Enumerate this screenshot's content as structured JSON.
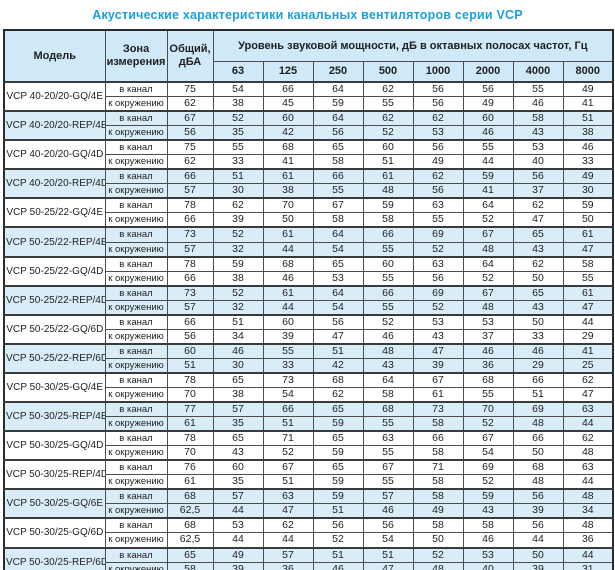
{
  "title": "Акустические характеристики канальных вентиляторов  серии VCP",
  "table": {
    "headers": {
      "model": "Модель",
      "zone": "Зона\nизмерения",
      "total": "Общий,\nдБА",
      "octave": "Уровень звуковой мощности, дБ в октавных полосах частот, Гц",
      "frequencies": [
        "63",
        "125",
        "250",
        "500",
        "1000",
        "2000",
        "4000",
        "8000"
      ]
    },
    "zone_labels": {
      "duct": "в канал",
      "ambient": "к окружению"
    },
    "rows": [
      {
        "model": "VCP 40-20/20-GQ/4E",
        "shaded": false,
        "duct": {
          "total": "75",
          "bands": [
            54,
            66,
            64,
            62,
            56,
            56,
            55,
            49
          ]
        },
        "ambient": {
          "total": "62",
          "bands": [
            38,
            45,
            59,
            55,
            56,
            49,
            46,
            41
          ]
        }
      },
      {
        "model": "VCP 40-20/20-REP/4E",
        "shaded": true,
        "duct": {
          "total": "67",
          "bands": [
            52,
            60,
            64,
            62,
            62,
            60,
            58,
            51
          ]
        },
        "ambient": {
          "total": "56",
          "bands": [
            35,
            42,
            56,
            52,
            53,
            46,
            43,
            38
          ]
        }
      },
      {
        "model": "VCP 40-20/20-GQ/4D",
        "shaded": false,
        "duct": {
          "total": "75",
          "bands": [
            55,
            68,
            65,
            60,
            56,
            55,
            53,
            46
          ]
        },
        "ambient": {
          "total": "62",
          "bands": [
            33,
            41,
            58,
            51,
            49,
            44,
            40,
            33
          ]
        }
      },
      {
        "model": "VCP 40-20/20-REP/4D",
        "shaded": true,
        "duct": {
          "total": "66",
          "bands": [
            51,
            61,
            66,
            61,
            62,
            59,
            56,
            49
          ]
        },
        "ambient": {
          "total": "57",
          "bands": [
            30,
            38,
            55,
            48,
            56,
            41,
            37,
            30
          ]
        }
      },
      {
        "model": "VCP 50-25/22-GQ/4E",
        "shaded": false,
        "duct": {
          "total": "78",
          "bands": [
            62,
            70,
            67,
            59,
            63,
            64,
            62,
            59
          ]
        },
        "ambient": {
          "total": "66",
          "bands": [
            39,
            50,
            58,
            58,
            55,
            52,
            47,
            50
          ]
        }
      },
      {
        "model": "VCP 50-25/22-REP/4E",
        "shaded": true,
        "duct": {
          "total": "73",
          "bands": [
            52,
            61,
            64,
            66,
            69,
            67,
            65,
            61
          ]
        },
        "ambient": {
          "total": "57",
          "bands": [
            32,
            44,
            54,
            55,
            52,
            48,
            43,
            47
          ]
        }
      },
      {
        "model": "VCP 50-25/22-GQ/4D",
        "shaded": false,
        "duct": {
          "total": "78",
          "bands": [
            59,
            68,
            65,
            60,
            63,
            64,
            62,
            58
          ]
        },
        "ambient": {
          "total": "66",
          "bands": [
            38,
            46,
            53,
            55,
            56,
            52,
            50,
            55
          ]
        }
      },
      {
        "model": "VCP 50-25/22-REP/4D",
        "shaded": true,
        "duct": {
          "total": "73",
          "bands": [
            52,
            61,
            64,
            66,
            69,
            67,
            65,
            61
          ]
        },
        "ambient": {
          "total": "57",
          "bands": [
            32,
            44,
            54,
            55,
            52,
            48,
            43,
            47
          ]
        }
      },
      {
        "model": "VCP 50-25/22-GQ/6D",
        "shaded": false,
        "duct": {
          "total": "66",
          "bands": [
            51,
            60,
            56,
            52,
            53,
            53,
            50,
            44
          ]
        },
        "ambient": {
          "total": "56",
          "bands": [
            34,
            39,
            47,
            46,
            43,
            37,
            33,
            29
          ]
        }
      },
      {
        "model": "VCP 50-25/22-REP/6D",
        "shaded": true,
        "duct": {
          "total": "60",
          "bands": [
            46,
            55,
            51,
            48,
            47,
            46,
            46,
            41
          ]
        },
        "ambient": {
          "total": "51",
          "bands": [
            30,
            33,
            42,
            43,
            39,
            36,
            29,
            25
          ]
        }
      },
      {
        "model": "VCP 50-30/25-GQ/4E",
        "shaded": false,
        "duct": {
          "total": "78",
          "bands": [
            65,
            73,
            68,
            64,
            67,
            68,
            66,
            62
          ]
        },
        "ambient": {
          "total": "70",
          "bands": [
            38,
            54,
            62,
            58,
            61,
            55,
            51,
            47
          ]
        }
      },
      {
        "model": "VCP 50-30/25-REP/4E",
        "shaded": true,
        "duct": {
          "total": "77",
          "bands": [
            57,
            66,
            65,
            68,
            73,
            70,
            69,
            63
          ]
        },
        "ambient": {
          "total": "61",
          "bands": [
            35,
            51,
            59,
            55,
            58,
            52,
            48,
            44
          ]
        }
      },
      {
        "model": "VCP 50-30/25-GQ/4D",
        "shaded": false,
        "duct": {
          "total": "78",
          "bands": [
            65,
            71,
            65,
            63,
            66,
            67,
            66,
            62
          ]
        },
        "ambient": {
          "total": "70",
          "bands": [
            43,
            52,
            59,
            55,
            58,
            54,
            50,
            48
          ]
        }
      },
      {
        "model": "VCP 50-30/25-REP/4D",
        "shaded": false,
        "duct": {
          "total": "76",
          "bands": [
            60,
            67,
            65,
            67,
            71,
            69,
            68,
            63
          ]
        },
        "ambient": {
          "total": "61",
          "bands": [
            35,
            51,
            59,
            55,
            58,
            52,
            48,
            44
          ]
        }
      },
      {
        "model": "VCP 50-30/25-GQ/6E",
        "shaded": true,
        "duct": {
          "total": "68",
          "bands": [
            57,
            63,
            59,
            57,
            58,
            59,
            56,
            48
          ]
        },
        "ambient": {
          "total": "62,5",
          "bands": [
            44,
            47,
            51,
            46,
            49,
            43,
            39,
            34
          ]
        }
      },
      {
        "model": "VCP 50-30/25-GQ/6D",
        "shaded": false,
        "duct": {
          "total": "68",
          "bands": [
            53,
            62,
            56,
            56,
            58,
            58,
            56,
            48
          ]
        },
        "ambient": {
          "total": "62,5",
          "bands": [
            44,
            44,
            52,
            54,
            50,
            46,
            44,
            36
          ]
        }
      },
      {
        "model": "VCP 50-30/25-REP/6D",
        "shaded": true,
        "duct": {
          "total": "65",
          "bands": [
            49,
            57,
            51,
            51,
            52,
            53,
            50,
            44
          ]
        },
        "ambient": {
          "total": "58",
          "bands": [
            39,
            36,
            46,
            47,
            48,
            40,
            39,
            31
          ]
        }
      }
    ]
  }
}
